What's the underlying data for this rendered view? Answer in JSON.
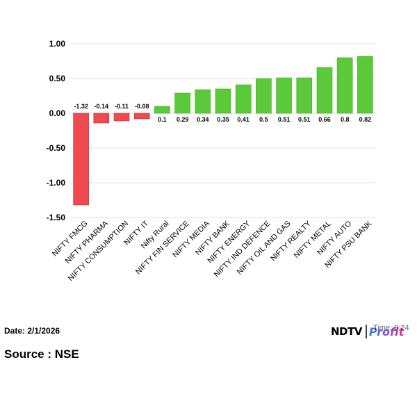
{
  "chart_data": {
    "type": "bar",
    "categories": [
      "NIFTY FMCG",
      "NIFTY PHARMA",
      "NIFTY CONSUMPTION",
      "NIFTY IT",
      "Nifty Rural",
      "NIFTY FIN SERVICE",
      "NIFTY MEDIA",
      "NIFTY BANK",
      "NIFTY ENERGY",
      "NIFTY IND DEFENCE",
      "NIFTY OIL AND GAS",
      "NIFTY REALTY",
      "NIFTY METAL",
      "NIFTY AUTO",
      "NIFTY PSU BANK"
    ],
    "values": [
      -1.32,
      -0.14,
      -0.11,
      -0.08,
      0.1,
      0.29,
      0.34,
      0.35,
      0.41,
      0.5,
      0.51,
      0.51,
      0.66,
      0.8,
      0.82
    ],
    "data_labels": [
      "-1.32",
      "-0.14",
      "-0.11",
      "-0.08",
      "0.1",
      "0.29",
      "0.34",
      "0.35",
      "0.41",
      "0.5",
      "0.51",
      "0.51",
      "0.66",
      "0.8",
      "0.82"
    ],
    "yticks": [
      "1.00",
      "0.50",
      "0.00",
      "-0.50",
      "-1.00",
      "-1.50"
    ],
    "ylim": [
      -1.5,
      1.0
    ],
    "grid": true,
    "title": "",
    "xlabel": "",
    "ylabel": "",
    "colors": {
      "positive": "#5cc93a",
      "negative": "#f04a4f",
      "grid": "#e2e2e2"
    }
  },
  "footer": {
    "date": "Date: 2/1/2026",
    "source": "Source : NSE",
    "time": "Time: 9:24"
  },
  "logo": {
    "ndtv": "NDTV",
    "profit": "Profit"
  }
}
